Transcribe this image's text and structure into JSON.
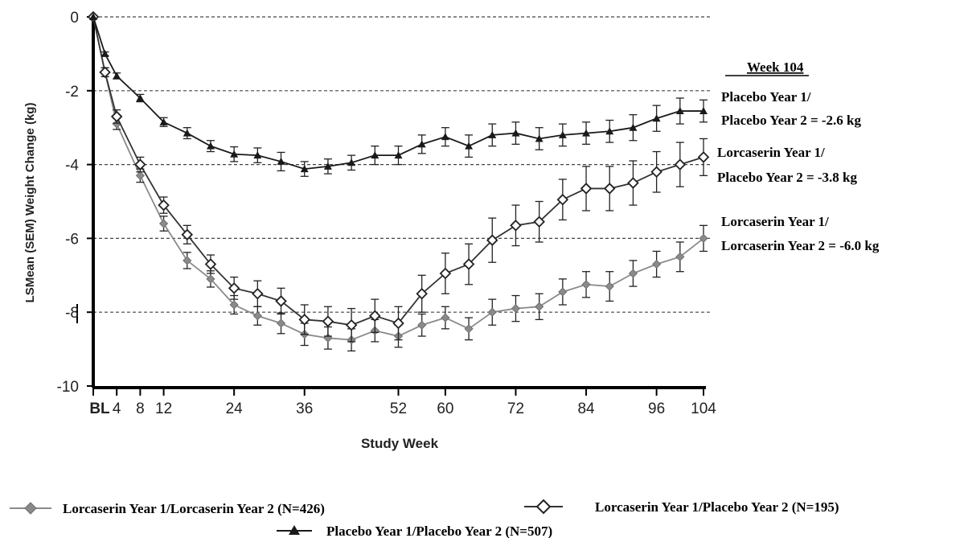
{
  "chart_data": {
    "type": "line",
    "title": "",
    "xlabel": "Study Week",
    "ylabel": "LSMean (SEM) Weight Change (kg)",
    "xlim": [
      0,
      104
    ],
    "ylim": [
      -10,
      0
    ],
    "x_ticks": [
      {
        "value": 0,
        "label": "BL"
      },
      {
        "value": 4,
        "label": "4"
      },
      {
        "value": 8,
        "label": "8"
      },
      {
        "value": 12,
        "label": "12"
      },
      {
        "value": 24,
        "label": "24"
      },
      {
        "value": 36,
        "label": "36"
      },
      {
        "value": 52,
        "label": "52"
      },
      {
        "value": 60,
        "label": "60"
      },
      {
        "value": 72,
        "label": "72"
      },
      {
        "value": 84,
        "label": "84"
      },
      {
        "value": 96,
        "label": "96"
      },
      {
        "value": 104,
        "label": "104"
      }
    ],
    "y_ticks": [
      {
        "value": 0,
        "label": "0"
      },
      {
        "value": -2,
        "label": "-2"
      },
      {
        "value": -4,
        "label": "-4"
      },
      {
        "value": -6,
        "label": "-6"
      },
      {
        "value": -8,
        "label": "-8"
      },
      {
        "value": -10,
        "label": "-10"
      }
    ],
    "gridlines": [
      0,
      -2,
      -4,
      -6,
      -8
    ],
    "x": [
      0,
      2,
      4,
      8,
      12,
      16,
      20,
      24,
      28,
      32,
      36,
      40,
      44,
      48,
      52,
      56,
      60,
      64,
      68,
      72,
      76,
      80,
      84,
      88,
      92,
      96,
      100,
      104
    ],
    "series": [
      {
        "name": "Lorcaserin Year 1/Lorcaserin Year 2 (N=426)",
        "marker": "diamond-filled",
        "color": "#8a8a8a",
        "values": [
          0,
          -1.5,
          -2.9,
          -4.3,
          -5.6,
          -6.6,
          -7.1,
          -7.8,
          -8.1,
          -8.3,
          -8.6,
          -8.7,
          -8.75,
          -8.5,
          -8.65,
          -8.35,
          -8.15,
          -8.45,
          -8.0,
          -7.9,
          -7.85,
          -7.45,
          -7.25,
          -7.3,
          -6.95,
          -6.7,
          -6.5,
          -6.0
        ],
        "sem": [
          0,
          0.12,
          0.15,
          0.18,
          0.2,
          0.22,
          0.22,
          0.25,
          0.25,
          0.28,
          0.3,
          0.3,
          0.3,
          0.3,
          0.3,
          0.3,
          0.3,
          0.3,
          0.35,
          0.35,
          0.35,
          0.35,
          0.35,
          0.4,
          0.35,
          0.35,
          0.4,
          0.35
        ]
      },
      {
        "name": "Lorcaserin Year 1/Placebo Year 2 (N=195)",
        "marker": "diamond-open",
        "color": "#333333",
        "values": [
          0,
          -1.5,
          -2.7,
          -4.0,
          -5.1,
          -5.9,
          -6.7,
          -7.35,
          -7.5,
          -7.7,
          -8.2,
          -8.25,
          -8.35,
          -8.1,
          -8.3,
          -7.5,
          -6.95,
          -6.7,
          -6.05,
          -5.65,
          -5.55,
          -4.95,
          -4.65,
          -4.65,
          -4.5,
          -4.2,
          -4.0,
          -3.8
        ],
        "sem": [
          0,
          0.12,
          0.18,
          0.2,
          0.22,
          0.25,
          0.25,
          0.3,
          0.35,
          0.35,
          0.4,
          0.4,
          0.45,
          0.45,
          0.45,
          0.5,
          0.55,
          0.55,
          0.6,
          0.55,
          0.55,
          0.55,
          0.6,
          0.6,
          0.6,
          0.55,
          0.6,
          0.5
        ]
      },
      {
        "name": "Placebo Year 1/Placebo Year 2 (N=507)",
        "marker": "triangle-filled",
        "color": "#1a1a1a",
        "values": [
          0,
          -1.0,
          -1.6,
          -2.2,
          -2.85,
          -3.15,
          -3.5,
          -3.72,
          -3.75,
          -3.92,
          -4.12,
          -4.05,
          -3.95,
          -3.75,
          -3.75,
          -3.45,
          -3.25,
          -3.5,
          -3.2,
          -3.15,
          -3.3,
          -3.2,
          -3.15,
          -3.1,
          -3.0,
          -2.75,
          -2.55,
          -2.55
        ],
        "sem": [
          0,
          0.05,
          0.08,
          0.1,
          0.12,
          0.15,
          0.15,
          0.2,
          0.2,
          0.25,
          0.2,
          0.2,
          0.2,
          0.25,
          0.25,
          0.25,
          0.25,
          0.3,
          0.3,
          0.3,
          0.3,
          0.3,
          0.3,
          0.3,
          0.35,
          0.35,
          0.35,
          0.3
        ]
      }
    ],
    "annotations": {
      "heading": "Week 104",
      "entries": [
        {
          "line1": "Placebo Year 1/",
          "line2": "Placebo Year 2 = -2.6 kg"
        },
        {
          "line1": "Lorcaserin Year 1/",
          "line2": "Placebo Year 2 = -3.8 kg"
        },
        {
          "line1": "Lorcaserin Year 1/",
          "line2": "Lorcaserin Year 2 = -6.0 kg"
        }
      ]
    },
    "legend": {
      "placement": "bottom",
      "items": [
        "Lorcaserin Year 1/Lorcaserin Year 2 (N=426)",
        "Lorcaserin Year 1/Placebo Year 2 (N=195)",
        "Placebo Year 1/Placebo Year 2 (N=507)"
      ]
    }
  }
}
